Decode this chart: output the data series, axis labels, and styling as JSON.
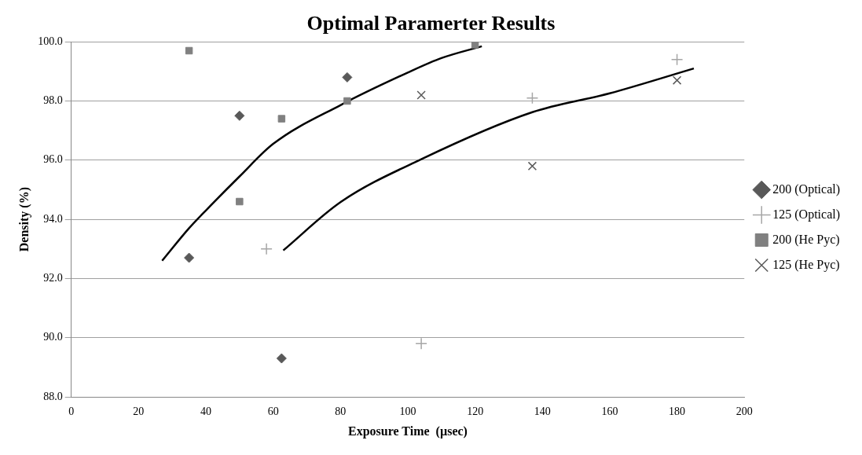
{
  "chart_data": {
    "type": "scatter",
    "title": "Optimal Paramerter Results",
    "xlabel": "Exposure Time  (µsec)",
    "ylabel": "Density (%)",
    "xlim": [
      0,
      200
    ],
    "xticks": [
      0,
      20,
      40,
      60,
      80,
      100,
      120,
      140,
      160,
      180,
      200
    ],
    "ylim": [
      88,
      100
    ],
    "yticks": [
      {
        "value": 88,
        "label": "88.0"
      },
      {
        "value": 90,
        "label": "90.0"
      },
      {
        "value": 92,
        "label": "92.0"
      },
      {
        "value": 94,
        "label": "94.0"
      },
      {
        "value": 96,
        "label": "96.0"
      },
      {
        "value": 98,
        "label": "98.0"
      },
      {
        "value": 100,
        "label": "100.0"
      }
    ],
    "grid": "y",
    "legend": "right",
    "series": [
      {
        "name": "200 (Optical)",
        "color": "#595959",
        "marker": "diamond",
        "x": [
          35,
          50,
          62.5,
          82
        ],
        "values": [
          92.7,
          97.5,
          89.3,
          98.8
        ]
      },
      {
        "name": "125 (Optical)",
        "color": "#a6a6a6",
        "marker": "cross",
        "x": [
          58,
          104,
          137,
          180
        ],
        "values": [
          93.0,
          89.8,
          98.1,
          99.4
        ]
      },
      {
        "name": "200 (He Pyc)",
        "color": "#808080",
        "marker": "square",
        "x": [
          35,
          50,
          62.5,
          82,
          120
        ],
        "values": [
          99.7,
          94.6,
          97.4,
          98.0,
          99.9
        ]
      },
      {
        "name": "125 (He Pyc)",
        "color": "#595959",
        "marker": "x",
        "x": [
          104,
          137,
          180
        ],
        "values": [
          98.2,
          95.8,
          98.7
        ]
      },
      {
        "type": "line",
        "color": "#000000",
        "marker": "none",
        "x": [
          27,
          35,
          40,
          50,
          60,
          80,
          100,
          110,
          122
        ],
        "values": [
          92.6,
          93.7,
          94.3,
          95.45,
          96.55,
          97.86,
          98.96,
          99.45,
          99.85
        ]
      },
      {
        "type": "line",
        "color": "#000000",
        "marker": "none",
        "x": [
          63,
          80,
          104,
          137,
          160,
          185
        ],
        "values": [
          92.95,
          94.58,
          96.03,
          97.62,
          98.26,
          99.1
        ]
      }
    ]
  }
}
